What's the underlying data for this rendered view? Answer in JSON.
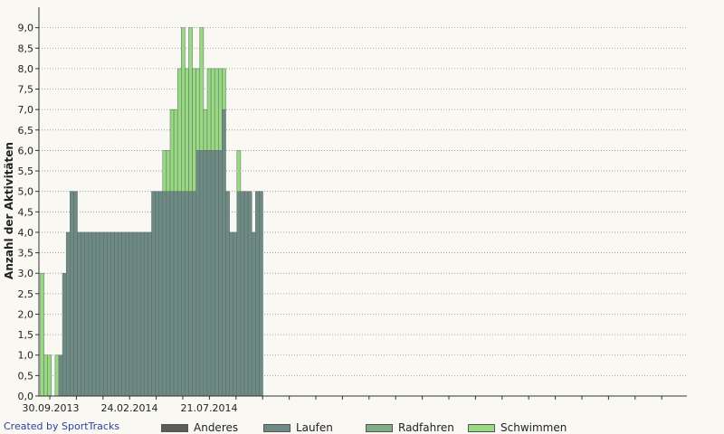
{
  "chart_data": {
    "type": "bar",
    "stacked": true,
    "ylabel": "Anzahl der Aktivitäten",
    "ylim": [
      0,
      9.5
    ],
    "y_ticks": [
      "0,0",
      "0,5",
      "1,0",
      "1,5",
      "2,0",
      "2,5",
      "3,0",
      "3,5",
      "4,0",
      "4,5",
      "5,0",
      "5,5",
      "6,0",
      "6,5",
      "7,0",
      "7,5",
      "8,0",
      "8,5",
      "9,0"
    ],
    "x_tick_labels": [
      "30.09.2013",
      "24.02.2014",
      "21.07.2014"
    ],
    "grid": "horizontal-dotted",
    "legend_position": "bottom",
    "bar_count": 60,
    "series": [
      {
        "name": "Anderes",
        "color": "#5a5c5c",
        "values": [
          0,
          0,
          0,
          0,
          0,
          0,
          0,
          0,
          0,
          0,
          0,
          0,
          0,
          0,
          0,
          0,
          0,
          0,
          0,
          0,
          0,
          0,
          0,
          0,
          0,
          0,
          0,
          0,
          0,
          0,
          0,
          0,
          0,
          0,
          0,
          0,
          0,
          0,
          0,
          0,
          0,
          0,
          0,
          0,
          0,
          0,
          0,
          0,
          0,
          0,
          0,
          0,
          0,
          0,
          0,
          0,
          0,
          0,
          0,
          0
        ]
      },
      {
        "name": "Laufen",
        "color": "#6e8a84",
        "values": [
          0,
          0,
          0,
          0,
          0,
          1,
          3,
          4,
          5,
          5,
          4,
          4,
          4,
          4,
          4,
          4,
          4,
          4,
          4,
          4,
          4,
          4,
          4,
          4,
          4,
          4,
          4,
          4,
          4,
          4,
          5,
          5,
          5,
          5,
          5,
          5,
          5,
          5,
          5,
          5,
          5,
          5,
          6,
          6,
          6,
          6,
          6,
          6,
          6,
          7,
          5,
          4,
          4,
          5,
          5,
          5,
          5,
          4,
          5,
          5
        ]
      },
      {
        "name": "Radfahren",
        "color": "#7fae86",
        "values": [
          0,
          0,
          0,
          0,
          0,
          0,
          0,
          0,
          0,
          0,
          0,
          0,
          0,
          0,
          0,
          0,
          0,
          0,
          0,
          0,
          0,
          0,
          0,
          0,
          0,
          0,
          0,
          0,
          0,
          0,
          0,
          0,
          0,
          0,
          0,
          0,
          0,
          0,
          0,
          0,
          0,
          0,
          0,
          0,
          0,
          0,
          0,
          0,
          0,
          0,
          0,
          0,
          0,
          0,
          0,
          0,
          0,
          0,
          0,
          0
        ]
      },
      {
        "name": "Schwimmen",
        "color": "#98d982",
        "values": [
          3,
          1,
          1,
          0,
          1,
          0,
          0,
          0,
          0,
          0,
          0,
          0,
          0,
          0,
          0,
          0,
          0,
          0,
          0,
          0,
          0,
          0,
          0,
          0,
          0,
          0,
          0,
          0,
          0,
          0,
          0,
          0,
          0,
          1,
          1,
          2,
          2,
          3,
          4,
          3,
          4,
          3,
          2,
          3,
          1,
          2,
          2,
          2,
          2,
          1,
          0,
          0,
          0,
          1,
          0,
          0,
          0,
          0,
          0,
          0
        ]
      }
    ]
  },
  "credit": "Created by SportTracks"
}
